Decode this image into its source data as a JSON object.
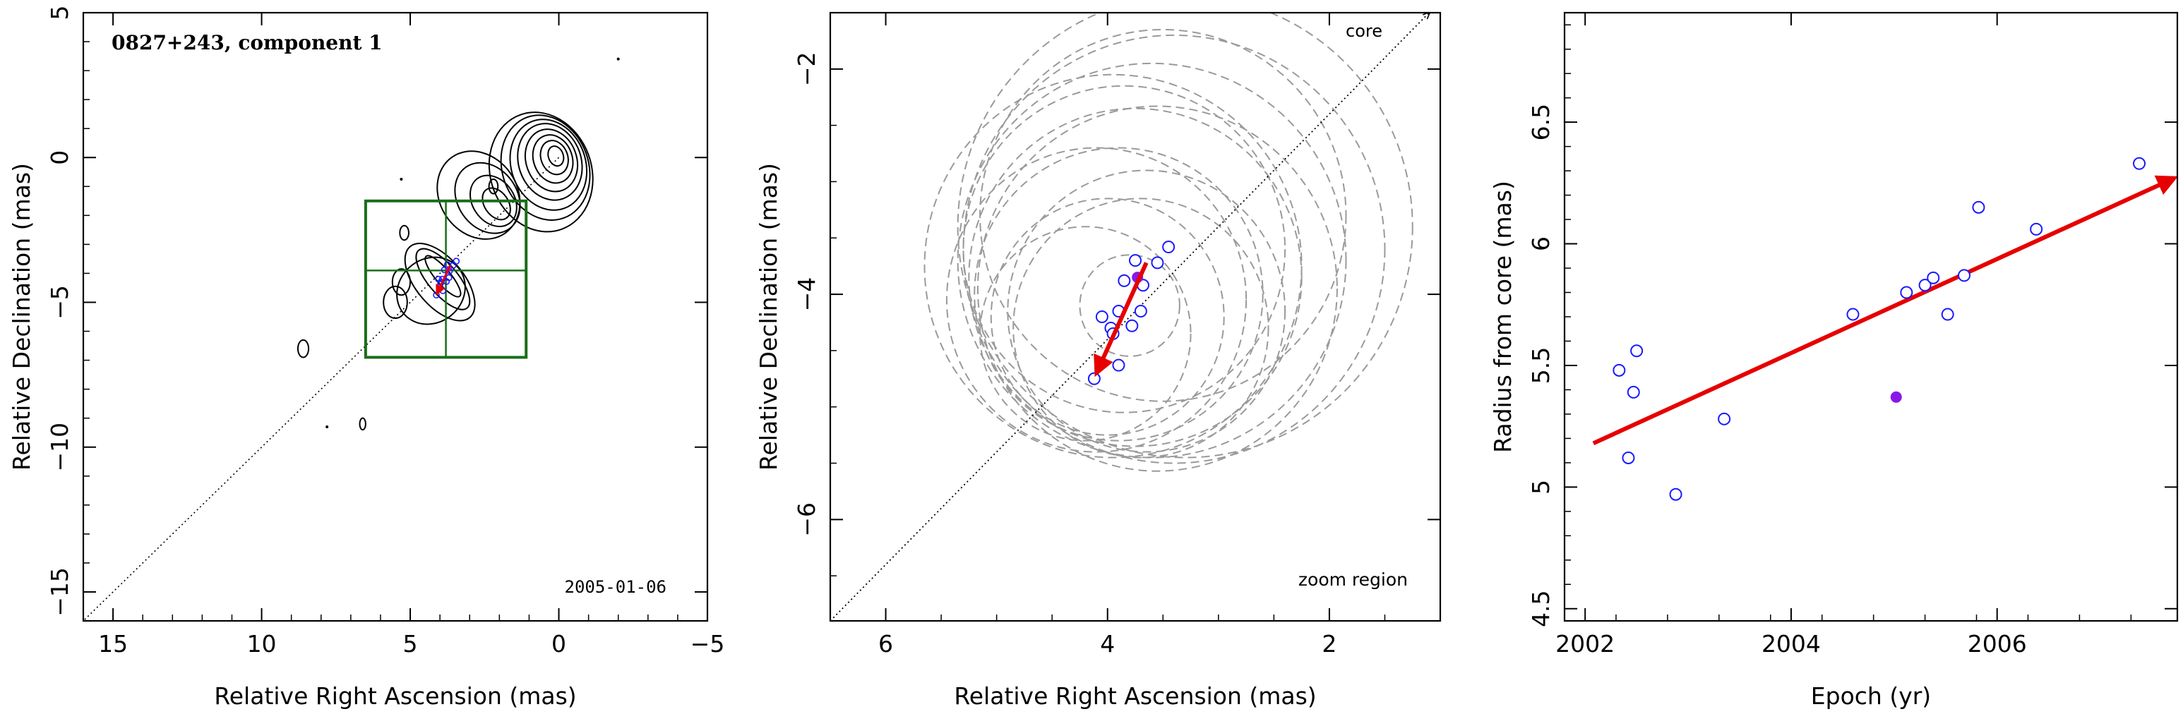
{
  "colors": {
    "axis": "#000000",
    "contour": "#000000",
    "box": "#1a6e1a",
    "circle_ring": "#9a9a9a",
    "marker": "#1a1aff",
    "highlight": "#8a17e6",
    "arrow": "#e60000",
    "dotted_line": "#000000"
  },
  "chart_data": [
    {
      "type": "contour",
      "title": "0827+243, component 1",
      "date_label": "2005-01-06",
      "xlabel": "Relative Right Ascension (mas)",
      "ylabel": "Relative Declination (mas)",
      "xlim": [
        16,
        -5
      ],
      "ylim": [
        -16,
        5
      ],
      "xticks": [
        15,
        10,
        5,
        0,
        -5
      ],
      "yticks": [
        5,
        0,
        -5,
        -10,
        -15
      ],
      "jet_axis_line": {
        "x": [
          0,
          16
        ],
        "y": [
          0,
          -16
        ],
        "style": "dotted"
      },
      "zoom_box": {
        "x": [
          6.5,
          1.1
        ],
        "y": [
          -6.9,
          -1.5
        ],
        "cross_x": 3.8,
        "cross_y": -3.9
      },
      "component_positions": [
        {
          "x": 4.12,
          "y": -4.75
        },
        {
          "x": 3.98,
          "y": -4.35
        },
        {
          "x": 3.92,
          "y": -4.2
        },
        {
          "x": 3.9,
          "y": -4.6
        },
        {
          "x": 3.85,
          "y": -3.88
        },
        {
          "x": 3.78,
          "y": -4.28
        },
        {
          "x": 3.75,
          "y": -3.7
        },
        {
          "x": 3.7,
          "y": -4.15
        },
        {
          "x": 3.68,
          "y": -3.92
        },
        {
          "x": 3.55,
          "y": -3.72
        },
        {
          "x": 3.45,
          "y": -3.58
        },
        {
          "x": 4.05,
          "y": -4.2
        },
        {
          "x": 3.97,
          "y": -4.3
        }
      ],
      "highlight_position": {
        "x": 3.72,
        "y": -3.85
      },
      "motion_arrow": {
        "from": {
          "x": 3.65,
          "y": -3.72
        },
        "to": {
          "x": 4.1,
          "y": -4.7
        }
      }
    },
    {
      "type": "scatter",
      "title": "",
      "label_core": "core",
      "label_zoom": "zoom region",
      "xlabel": "Relative Right Ascension (mas)",
      "ylabel": "Relative Declination (mas)",
      "xlim": [
        6.5,
        1
      ],
      "ylim": [
        -6.9,
        -1.5
      ],
      "xticks": [
        6,
        4,
        2
      ],
      "yticks": [
        -2,
        -4,
        -6
      ],
      "jet_axis_line": {
        "x": [
          6.5,
          1.1
        ],
        "y": [
          -6.9,
          -1.5
        ],
        "style": "dotted"
      },
      "fit_circles": [
        {
          "x": 3.75,
          "y": -3.85,
          "r": 1.5
        },
        {
          "x": 3.6,
          "y": -3.7,
          "r": 1.75
        },
        {
          "x": 3.9,
          "y": -4.0,
          "r": 1.3
        },
        {
          "x": 3.4,
          "y": -3.6,
          "r": 1.9
        },
        {
          "x": 4.0,
          "y": -4.2,
          "r": 1.05
        },
        {
          "x": 3.3,
          "y": -3.4,
          "r": 2.05
        },
        {
          "x": 4.2,
          "y": -4.35,
          "r": 0.95
        },
        {
          "x": 3.55,
          "y": -3.95,
          "r": 1.62
        },
        {
          "x": 3.85,
          "y": -3.6,
          "r": 1.45
        },
        {
          "x": 3.65,
          "y": -4.15,
          "r": 1.25
        },
        {
          "x": 3.95,
          "y": -3.75,
          "r": 1.7
        },
        {
          "x": 3.5,
          "y": -3.3,
          "r": 1.65
        },
        {
          "x": 4.1,
          "y": -4.05,
          "r": 1.35
        },
        {
          "x": 3.7,
          "y": -4.3,
          "r": 1.15
        },
        {
          "x": 3.8,
          "y": -4.1,
          "r": 0.45
        }
      ],
      "component_positions": [
        {
          "x": 4.12,
          "y": -4.75
        },
        {
          "x": 4.05,
          "y": -4.2
        },
        {
          "x": 3.97,
          "y": -4.3
        },
        {
          "x": 3.95,
          "y": -4.35
        },
        {
          "x": 3.9,
          "y": -4.15
        },
        {
          "x": 3.85,
          "y": -3.88
        },
        {
          "x": 3.78,
          "y": -4.28
        },
        {
          "x": 3.75,
          "y": -3.7
        },
        {
          "x": 3.7,
          "y": -4.15
        },
        {
          "x": 3.68,
          "y": -3.92
        },
        {
          "x": 3.55,
          "y": -3.72
        },
        {
          "x": 3.45,
          "y": -3.58
        },
        {
          "x": 3.9,
          "y": -4.63
        }
      ],
      "highlight_position": {
        "x": 3.73,
        "y": -3.85
      },
      "motion_arrow": {
        "from": {
          "x": 3.65,
          "y": -3.72
        },
        "to": {
          "x": 4.1,
          "y": -4.7
        }
      }
    },
    {
      "type": "scatter",
      "title": "",
      "xlabel": "Epoch (yr)",
      "ylabel": "Radius from core (mas)",
      "xlim": [
        2001.8,
        2007.75
      ],
      "ylim": [
        4.45,
        6.95
      ],
      "xticks": [
        2002,
        2004,
        2006
      ],
      "yticks": [
        4.5,
        5,
        5.5,
        6,
        6.5
      ],
      "points": [
        {
          "x": 2002.33,
          "y": 5.48
        },
        {
          "x": 2002.42,
          "y": 5.12
        },
        {
          "x": 2002.47,
          "y": 5.39
        },
        {
          "x": 2002.5,
          "y": 5.56
        },
        {
          "x": 2002.88,
          "y": 4.97
        },
        {
          "x": 2003.35,
          "y": 5.28
        },
        {
          "x": 2004.6,
          "y": 5.71
        },
        {
          "x": 2005.12,
          "y": 5.8
        },
        {
          "x": 2005.3,
          "y": 5.83
        },
        {
          "x": 2005.38,
          "y": 5.86
        },
        {
          "x": 2005.52,
          "y": 5.71
        },
        {
          "x": 2005.68,
          "y": 5.87
        },
        {
          "x": 2005.82,
          "y": 6.15
        },
        {
          "x": 2006.38,
          "y": 6.06
        },
        {
          "x": 2007.38,
          "y": 6.33
        }
      ],
      "highlight_point": {
        "x": 2005.02,
        "y": 5.37
      },
      "fit_arrow": {
        "from": {
          "x": 2002.08,
          "y": 5.18
        },
        "to": {
          "x": 2007.72,
          "y": 6.27
        }
      }
    }
  ]
}
